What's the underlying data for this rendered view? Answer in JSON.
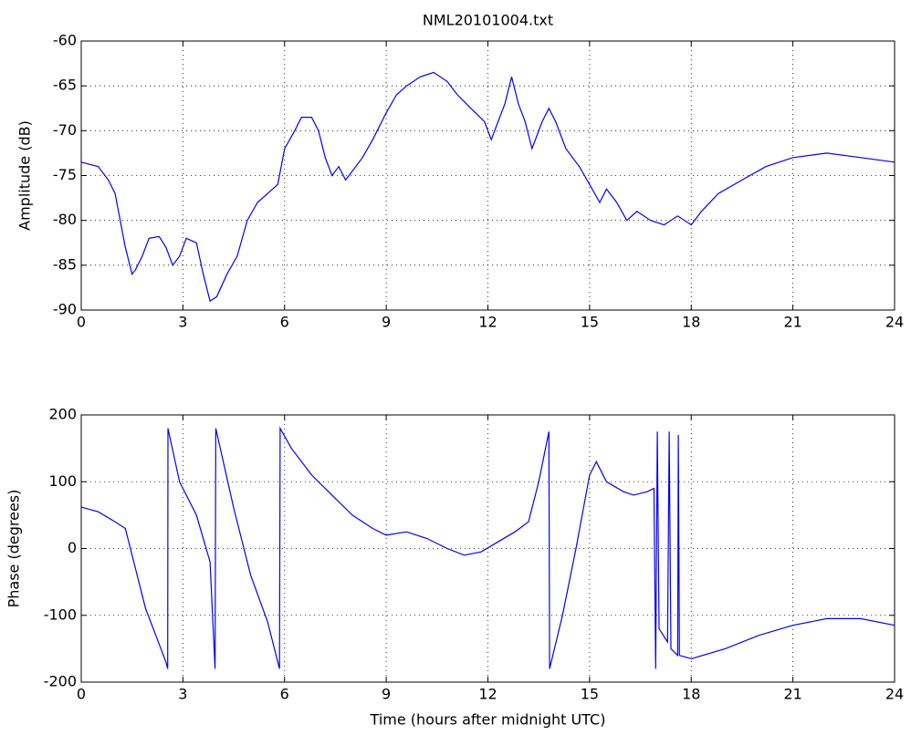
{
  "chart_data": [
    {
      "type": "line",
      "title": "NML20101004.txt",
      "ylabel": "Amplitude (dB)",
      "x": [
        0,
        0.5,
        0.8,
        1.0,
        1.1,
        1.3,
        1.5,
        1.6,
        1.8,
        2.0,
        2.3,
        2.5,
        2.7,
        2.9,
        3.1,
        3.4,
        3.6,
        3.8,
        4.0,
        4.3,
        4.6,
        4.9,
        5.2,
        5.5,
        5.8,
        6.0,
        6.3,
        6.5,
        6.8,
        7.0,
        7.2,
        7.4,
        7.6,
        7.8,
        8.0,
        8.3,
        8.6,
        9.0,
        9.3,
        9.6,
        10.0,
        10.4,
        10.8,
        11.1,
        11.5,
        11.9,
        12.1,
        12.3,
        12.5,
        12.7,
        12.9,
        13.1,
        13.3,
        13.6,
        13.8,
        14.0,
        14.3,
        14.7,
        15.0,
        15.3,
        15.5,
        15.8,
        16.1,
        16.4,
        16.8,
        17.2,
        17.6,
        18.0,
        18.3,
        18.8,
        19.5,
        20.2,
        21,
        22,
        23,
        24
      ],
      "values": [
        -73.5,
        -74,
        -75.5,
        -77,
        -79,
        -83,
        -86,
        -85.5,
        -84,
        -82,
        -81.8,
        -83,
        -85,
        -84,
        -82,
        -82.5,
        -86,
        -89,
        -88.5,
        -86,
        -84,
        -80,
        -78,
        -77,
        -76,
        -72,
        -70,
        -68.5,
        -68.5,
        -70,
        -73,
        -75,
        -74,
        -75.5,
        -74.5,
        -73,
        -71,
        -68,
        -66,
        -65,
        -64,
        -63.5,
        -64.5,
        -66,
        -67.5,
        -69,
        -71,
        -69,
        -67,
        -64,
        -67,
        -69,
        -72,
        -69,
        -67.5,
        -69,
        -72,
        -74,
        -76,
        -78,
        -76.5,
        -78,
        -80,
        -79,
        -80,
        -80.5,
        -79.5,
        -80.5,
        -79,
        -77,
        -75.5,
        -74,
        -73,
        -72.5,
        -73,
        -73.5
      ],
      "color": "#0000ff",
      "xlim": [
        0,
        24
      ],
      "ylim": [
        -90,
        -60
      ],
      "xticks": [
        0,
        3,
        6,
        9,
        12,
        15,
        18,
        21,
        24
      ],
      "yticks": [
        -90,
        -85,
        -80,
        -75,
        -70,
        -65,
        -60
      ],
      "grid": true
    },
    {
      "type": "line",
      "xlabel": "Time (hours after midnight UTC)",
      "ylabel": "Phase (degrees)",
      "x": [
        0,
        0.5,
        1.0,
        1.3,
        1.6,
        1.9,
        2.2,
        2.5,
        2.55,
        2.56,
        2.9,
        3.4,
        3.8,
        3.95,
        3.97,
        4.5,
        5.0,
        5.5,
        5.85,
        5.87,
        6.2,
        6.8,
        7.4,
        8.0,
        8.6,
        9.0,
        9.6,
        10.2,
        10.8,
        11.3,
        11.8,
        12.3,
        12.8,
        13.2,
        13.5,
        13.8,
        13.82,
        14.2,
        14.6,
        15.0,
        15.2,
        15.5,
        16.0,
        16.3,
        16.7,
        16.9,
        16.95,
        17.0,
        17.05,
        17.3,
        17.35,
        17.4,
        17.6,
        17.62,
        17.65,
        18.0,
        19,
        20,
        21,
        22,
        23,
        24
      ],
      "values": [
        62,
        55,
        40,
        30,
        -30,
        -90,
        -130,
        -170,
        -180,
        180,
        100,
        50,
        -20,
        -180,
        180,
        60,
        -40,
        -110,
        -180,
        180,
        150,
        110,
        80,
        50,
        30,
        20,
        25,
        15,
        0,
        -10,
        -5,
        10,
        25,
        40,
        100,
        175,
        -180,
        -100,
        0,
        110,
        130,
        100,
        85,
        80,
        85,
        90,
        -180,
        175,
        -120,
        -140,
        175,
        -150,
        -160,
        170,
        -160,
        -165,
        -150,
        -130,
        -115,
        -105,
        -105,
        -115
      ],
      "color": "#0000ff",
      "xlim": [
        0,
        24
      ],
      "ylim": [
        -200,
        200
      ],
      "xticks": [
        0,
        3,
        6,
        9,
        12,
        15,
        18,
        21,
        24
      ],
      "yticks": [
        -200,
        -100,
        0,
        100,
        200
      ],
      "grid": true
    }
  ]
}
